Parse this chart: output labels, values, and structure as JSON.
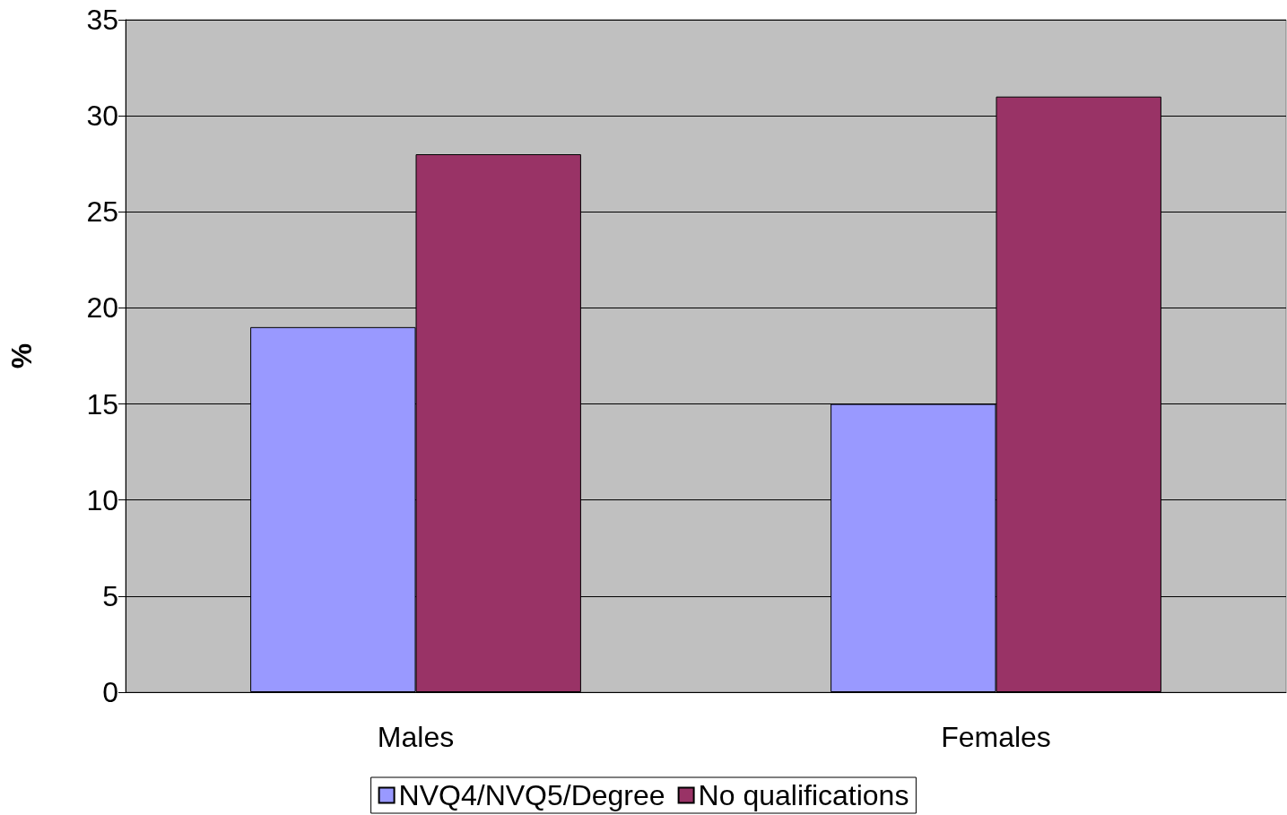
{
  "chart_data": {
    "type": "bar",
    "ylabel": "%",
    "categories": [
      "Males",
      "Females"
    ],
    "series": [
      {
        "name": "NVQ4/NVQ5/Degree",
        "color": "#9999ff",
        "values": [
          19,
          15
        ]
      },
      {
        "name": "No qualifications",
        "color": "#993366",
        "values": [
          28,
          31
        ]
      }
    ],
    "ylim": [
      0,
      35
    ],
    "yticks": [
      0,
      5,
      10,
      15,
      20,
      25,
      30,
      35
    ],
    "grid": "y",
    "legend": "bottom"
  }
}
